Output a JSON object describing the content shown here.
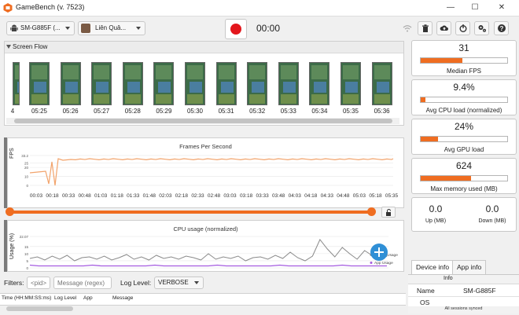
{
  "window": {
    "title": "GameBench (v. 7523)",
    "minimize_glyph": "—",
    "maximize_glyph": "☐",
    "close_glyph": "✕"
  },
  "toolbar": {
    "device_dropdown": {
      "label": "SM-G885F (...",
      "icon": "android-icon"
    },
    "app_dropdown": {
      "label": "Liên Quâ...",
      "icon": "app-thumbnail-icon"
    },
    "record_color": "#e3161c",
    "timer": "00:00",
    "buttons": [
      {
        "name": "wifi-button",
        "icon": "wifi-icon"
      },
      {
        "name": "delete-button",
        "icon": "trash-icon"
      },
      {
        "name": "cloud-upload-button",
        "icon": "cloud-upload-icon"
      },
      {
        "name": "power-button",
        "icon": "power-icon"
      },
      {
        "name": "settings-button",
        "icon": "gear-icon"
      },
      {
        "name": "help-button",
        "icon": "help-icon"
      }
    ]
  },
  "screen_flow": {
    "title": "Screen Flow",
    "timestamps": [
      "4",
      "05:25",
      "05:26",
      "05:27",
      "05:28",
      "05:29",
      "05:30",
      "05:31",
      "05:32",
      "05:33",
      "05:34",
      "05:35",
      "05:36"
    ]
  },
  "fps_chart": {
    "title": "Frames Per Second",
    "ylabel": "FPS",
    "y_tick_labels": [
      "33.2",
      "25",
      "20",
      "10",
      "0"
    ],
    "x_tick_labels": [
      "00:03",
      "00:18",
      "00:33",
      "00:48",
      "01:03",
      "01:18",
      "01:33",
      "01:48",
      "02:03",
      "02:18",
      "02:33",
      "02:48",
      "03:03",
      "03:18",
      "03:33",
      "03:48",
      "04:03",
      "04:18",
      "04:33",
      "04:48",
      "05:03",
      "05:18",
      "05:35"
    ],
    "series_color": "#f2a36b",
    "accent": "#ef6d21"
  },
  "timeline": {
    "lock_icon": "unlock-icon"
  },
  "cpu_chart": {
    "title": "CPU usage (normalized)",
    "ylabel": "Usage (%)",
    "y_tick_labels": [
      "22.07",
      "15",
      "10",
      "5",
      "0"
    ],
    "legend": [
      "Device Usage",
      "App Usage"
    ],
    "device_color": "#8a8a8a",
    "app_color": "#a45be0",
    "add_button_color": "#2f8fd6"
  },
  "stats": [
    {
      "value": "31",
      "label": "Median FPS",
      "fill": 0.48
    },
    {
      "value": "9.4%",
      "label": "Avg CPU load (normalized)",
      "fill": 0.05
    },
    {
      "value": "24%",
      "label": "Avg GPU load",
      "fill": 0.2
    },
    {
      "value": "624",
      "label": "Max memory used (MB)",
      "fill": 0.58
    }
  ],
  "network": {
    "up_value": "0.0",
    "up_label": "Up (MB)",
    "down_value": "0.0",
    "down_label": "Down (MB)"
  },
  "filters": {
    "label": "Filters:",
    "pid_placeholder": "<pid>",
    "message_placeholder": "Message (regex)",
    "log_level_label": "Log Level:",
    "log_level_value": "VERBOSE"
  },
  "log_columns": [
    "Time (HH:MM:SS:ms)",
    "Log Level",
    "App",
    "Message"
  ],
  "device_info": {
    "tabs": [
      "Device info",
      "App info"
    ],
    "header": "Info",
    "rows": [
      {
        "key": "Name",
        "value": "SM-G885F"
      },
      {
        "key": "OS",
        "value": ""
      }
    ],
    "status": "All sessions synced"
  }
}
